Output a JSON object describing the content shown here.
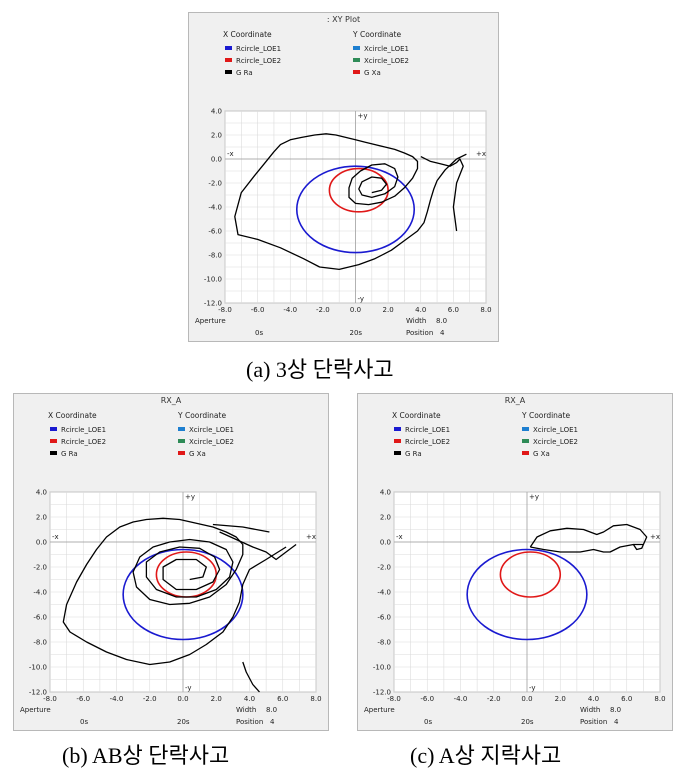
{
  "chart_data": [
    {
      "type": "line",
      "title": ": XY Plot",
      "caption": "(a) 3상 단락사고",
      "legend": {
        "x_header": "X Coordinate",
        "y_header": "Y Coordinate",
        "rows": [
          {
            "x_name": "Rcircle_LOE1",
            "x_color": "#1a1ad0",
            "y_name": "Xcircle_LOE1",
            "y_color": "#1e7fd0"
          },
          {
            "x_name": "Rcircle_LOE2",
            "x_color": "#e01818",
            "y_name": "Xcircle_LOE2",
            "y_color": "#2e8b57"
          },
          {
            "x_name": "G Ra",
            "x_color": "#000000",
            "y_name": "G Xa",
            "y_color": "#e01818"
          }
        ]
      },
      "xlim": [
        -8,
        8
      ],
      "ylim": [
        -12,
        4
      ],
      "x_ticks": [
        "-8.0",
        "-6.0",
        "-4.0",
        "-2.0",
        "0.0",
        "2.0",
        "4.0",
        "6.0",
        "8.0"
      ],
      "y_ticks": [
        "4.0",
        "2.0",
        "0.0",
        "-2.0",
        "-4.0",
        "-6.0",
        "-8.0",
        "-10.0",
        "-12.0"
      ],
      "axis_marks": {
        "px": "+x",
        "nx": "-x",
        "py": "+y",
        "ny": "-y"
      },
      "footer": {
        "aperture": "Aperture",
        "t_start": "0s",
        "t_end": "20s",
        "width_label": "Width",
        "width": "8.0",
        "position_label": "Position",
        "position": "4"
      },
      "circles": [
        {
          "name": "Rcircle_LOE1",
          "color": "#1a1ad0",
          "cx": 0.0,
          "cy": -4.2,
          "r": 3.6
        },
        {
          "name": "Rcircle_LOE2",
          "color": "#e01818",
          "cx": 0.2,
          "cy": -2.6,
          "r": 1.8
        }
      ],
      "traces": [
        {
          "name": "G Ra / G Xa",
          "color": "#000000",
          "points": [
            [
              6.2,
              0.0
            ],
            [
              5.5,
              -0.9
            ],
            [
              5.0,
              -1.8
            ],
            [
              4.8,
              -2.5
            ],
            [
              4.6,
              -3.4
            ],
            [
              4.4,
              -4.4
            ],
            [
              4.2,
              -5.3
            ],
            [
              3.8,
              -6.0
            ],
            [
              3.0,
              -6.8
            ],
            [
              2.2,
              -7.6
            ],
            [
              1.2,
              -8.3
            ],
            [
              0.2,
              -8.8
            ],
            [
              -1.0,
              -9.2
            ],
            [
              -2.2,
              -9.0
            ],
            [
              -3.2,
              -8.3
            ],
            [
              -4.6,
              -7.4
            ],
            [
              -6.0,
              -6.7
            ],
            [
              -7.2,
              -6.3
            ],
            [
              -7.4,
              -4.8
            ],
            [
              -7.0,
              -2.8
            ],
            [
              -6.2,
              -1.4
            ],
            [
              -5.6,
              -0.4
            ],
            [
              -5.0,
              0.6
            ],
            [
              -4.6,
              1.2
            ],
            [
              -4.0,
              1.6
            ],
            [
              -3.3,
              1.8
            ],
            [
              -2.5,
              2.0
            ],
            [
              -1.8,
              2.1
            ],
            [
              -1.2,
              2.0
            ],
            [
              -0.6,
              1.8
            ],
            [
              0.0,
              1.6
            ],
            [
              0.6,
              1.4
            ],
            [
              1.2,
              1.2
            ],
            [
              1.8,
              1.0
            ],
            [
              2.4,
              0.8
            ],
            [
              3.0,
              0.5
            ],
            [
              3.5,
              0.2
            ],
            [
              3.8,
              -0.2
            ],
            [
              3.8,
              -0.8
            ],
            [
              3.5,
              -1.6
            ],
            [
              3.0,
              -2.4
            ],
            [
              2.4,
              -3.1
            ],
            [
              1.6,
              -3.6
            ],
            [
              0.8,
              -3.8
            ],
            [
              0.0,
              -3.7
            ],
            [
              -0.4,
              -3.2
            ],
            [
              -0.4,
              -2.4
            ],
            [
              -0.2,
              -1.6
            ],
            [
              0.3,
              -1.0
            ],
            [
              1.0,
              -0.5
            ],
            [
              1.8,
              -0.4
            ],
            [
              2.4,
              -0.8
            ],
            [
              2.6,
              -1.5
            ],
            [
              2.4,
              -2.3
            ],
            [
              1.8,
              -2.9
            ],
            [
              1.0,
              -3.2
            ],
            [
              0.4,
              -3.0
            ],
            [
              0.2,
              -2.5
            ],
            [
              0.4,
              -1.9
            ],
            [
              1.0,
              -1.5
            ],
            [
              1.6,
              -1.6
            ],
            [
              1.9,
              -2.1
            ],
            [
              1.6,
              -2.6
            ],
            [
              1.0,
              -2.8
            ]
          ]
        },
        {
          "name": "branch",
          "color": "#000000",
          "points": [
            [
              4.0,
              0.2
            ],
            [
              4.6,
              -0.2
            ],
            [
              5.2,
              -0.4
            ],
            [
              5.8,
              -0.6
            ],
            [
              6.2,
              -0.3
            ],
            [
              6.4,
              0.0
            ],
            [
              6.6,
              -0.6
            ],
            [
              6.2,
              -2.0
            ],
            [
              6.0,
              -4.0
            ],
            [
              6.2,
              -6.0
            ]
          ]
        },
        {
          "name": "tick",
          "color": "#000000",
          "points": [
            [
              6.2,
              0.0
            ],
            [
              6.8,
              0.4
            ]
          ]
        }
      ]
    },
    {
      "type": "line",
      "title": "RX_A",
      "caption": "(b) AB상 단락사고",
      "legend": {
        "x_header": "X Coordinate",
        "y_header": "Y Coordinate",
        "rows": [
          {
            "x_name": "Rcircle_LOE1",
            "x_color": "#1a1ad0",
            "y_name": "Xcircle_LOE1",
            "y_color": "#1e7fd0"
          },
          {
            "x_name": "Rcircle_LOE2",
            "x_color": "#e01818",
            "y_name": "Xcircle_LOE2",
            "y_color": "#2e8b57"
          },
          {
            "x_name": "G Ra",
            "x_color": "#000000",
            "y_name": "G Xa",
            "y_color": "#e01818"
          }
        ]
      },
      "xlim": [
        -8,
        8
      ],
      "ylim": [
        -12,
        4
      ],
      "x_ticks": [
        "-8.0",
        "-6.0",
        "-4.0",
        "-2.0",
        "0.0",
        "2.0",
        "4.0",
        "6.0",
        "8.0"
      ],
      "y_ticks": [
        "4.0",
        "2.0",
        "0.0",
        "-2.0",
        "-4.0",
        "-6.0",
        "-8.0",
        "-10.0",
        "-12.0"
      ],
      "axis_marks": {
        "px": "+x",
        "nx": "-x",
        "py": "+y",
        "ny": "-y"
      },
      "footer": {
        "aperture": "Aperture",
        "t_start": "0s",
        "t_end": "20s",
        "width_label": "Width",
        "width": "8.0",
        "position_label": "Position",
        "position": "4"
      },
      "circles": [
        {
          "name": "Rcircle_LOE1",
          "color": "#1a1ad0",
          "cx": 0.0,
          "cy": -4.2,
          "r": 3.6
        },
        {
          "name": "Rcircle_LOE2",
          "color": "#e01818",
          "cx": 0.2,
          "cy": -2.6,
          "r": 1.8
        }
      ],
      "traces": [
        {
          "name": "G Ra / G Xa",
          "color": "#000000",
          "points": [
            [
              6.2,
              -0.4
            ],
            [
              5.0,
              -1.4
            ],
            [
              4.0,
              -2.2
            ],
            [
              3.6,
              -3.4
            ],
            [
              3.4,
              -4.8
            ],
            [
              3.0,
              -6.0
            ],
            [
              2.4,
              -7.2
            ],
            [
              1.4,
              -8.2
            ],
            [
              0.4,
              -9.0
            ],
            [
              -0.8,
              -9.6
            ],
            [
              -2.0,
              -9.8
            ],
            [
              -3.4,
              -9.4
            ],
            [
              -4.6,
              -8.8
            ],
            [
              -5.8,
              -8.0
            ],
            [
              -6.8,
              -7.2
            ],
            [
              -7.2,
              -6.4
            ],
            [
              -7.0,
              -5.0
            ],
            [
              -6.4,
              -3.2
            ],
            [
              -5.8,
              -1.8
            ],
            [
              -5.2,
              -0.6
            ],
            [
              -4.6,
              0.4
            ],
            [
              -3.8,
              1.2
            ],
            [
              -3.0,
              1.6
            ],
            [
              -2.2,
              1.8
            ],
            [
              -1.2,
              1.9
            ],
            [
              -0.2,
              1.8
            ],
            [
              0.8,
              1.5
            ],
            [
              1.8,
              1.2
            ],
            [
              2.6,
              0.8
            ],
            [
              3.2,
              0.4
            ],
            [
              3.6,
              -0.2
            ],
            [
              3.6,
              -1.0
            ],
            [
              3.2,
              -2.2
            ],
            [
              2.6,
              -3.4
            ],
            [
              1.6,
              -4.4
            ],
            [
              0.4,
              -4.9
            ],
            [
              -0.8,
              -5.0
            ],
            [
              -2.0,
              -4.6
            ],
            [
              -2.8,
              -3.6
            ],
            [
              -3.0,
              -2.4
            ],
            [
              -2.6,
              -1.2
            ],
            [
              -1.8,
              -0.4
            ],
            [
              -0.8,
              0.0
            ],
            [
              0.4,
              0.2
            ],
            [
              1.6,
              0.0
            ],
            [
              2.6,
              -0.6
            ],
            [
              3.0,
              -1.6
            ],
            [
              2.8,
              -2.8
            ],
            [
              2.0,
              -3.8
            ],
            [
              0.8,
              -4.4
            ],
            [
              -0.4,
              -4.4
            ],
            [
              -1.6,
              -3.8
            ],
            [
              -2.2,
              -2.8
            ],
            [
              -2.2,
              -1.6
            ],
            [
              -1.4,
              -0.8
            ],
            [
              -0.2,
              -0.4
            ],
            [
              1.0,
              -0.5
            ],
            [
              1.9,
              -1.2
            ],
            [
              2.2,
              -2.2
            ],
            [
              1.8,
              -3.2
            ],
            [
              0.8,
              -3.8
            ],
            [
              -0.4,
              -3.8
            ],
            [
              -1.2,
              -3.0
            ],
            [
              -1.2,
              -2.0
            ],
            [
              -0.4,
              -1.4
            ],
            [
              0.8,
              -1.4
            ],
            [
              1.4,
              -2.0
            ],
            [
              1.2,
              -2.8
            ],
            [
              0.4,
              -3.0
            ]
          ]
        },
        {
          "name": "tail",
          "color": "#000000",
          "points": [
            [
              2.2,
              0.8
            ],
            [
              3.2,
              0.2
            ],
            [
              4.2,
              -0.4
            ],
            [
              5.0,
              -0.8
            ],
            [
              5.6,
              -1.4
            ],
            [
              6.4,
              -0.6
            ],
            [
              6.8,
              -0.2
            ]
          ]
        },
        {
          "name": "outer",
          "color": "#000000",
          "points": [
            [
              1.8,
              1.4
            ],
            [
              3.6,
              1.2
            ],
            [
              5.2,
              0.8
            ]
          ]
        },
        {
          "name": "tail2",
          "color": "#000000",
          "points": [
            [
              3.6,
              -9.6
            ],
            [
              3.8,
              -10.4
            ],
            [
              4.2,
              -11.4
            ],
            [
              4.6,
              -12.0
            ]
          ]
        }
      ]
    },
    {
      "type": "line",
      "title": "RX_A",
      "caption": "(c) A상 지락사고",
      "legend": {
        "x_header": "X Coordinate",
        "y_header": "Y Coordinate",
        "rows": [
          {
            "x_name": "Rcircle_LOE1",
            "x_color": "#1a1ad0",
            "y_name": "Xcircle_LOE1",
            "y_color": "#1e7fd0"
          },
          {
            "x_name": "Rcircle_LOE2",
            "x_color": "#e01818",
            "y_name": "Xcircle_LOE2",
            "y_color": "#2e8b57"
          },
          {
            "x_name": "G Ra",
            "x_color": "#000000",
            "y_name": "G Xa",
            "y_color": "#e01818"
          }
        ]
      },
      "xlim": [
        -8,
        8
      ],
      "ylim": [
        -12,
        4
      ],
      "x_ticks": [
        "-8.0",
        "-6.0",
        "-4.0",
        "-2.0",
        "0.0",
        "2.0",
        "4.0",
        "6.0",
        "8.0"
      ],
      "y_ticks": [
        "4.0",
        "2.0",
        "0.0",
        "-2.0",
        "-4.0",
        "-6.0",
        "-8.0",
        "-10.0",
        "-12.0"
      ],
      "axis_marks": {
        "px": "+x",
        "nx": "-x",
        "py": "+y",
        "ny": "-y"
      },
      "footer": {
        "aperture": "Aperture",
        "t_start": "0s",
        "t_end": "20s",
        "width_label": "Width",
        "width": "8.0",
        "position_label": "Position",
        "position": "4"
      },
      "circles": [
        {
          "name": "Rcircle_LOE1",
          "color": "#1a1ad0",
          "cx": 0.0,
          "cy": -4.2,
          "r": 3.6
        },
        {
          "name": "Rcircle_LOE2",
          "color": "#e01818",
          "cx": 0.2,
          "cy": -2.6,
          "r": 1.8
        }
      ],
      "traces": [
        {
          "name": "G Ra / G Xa",
          "color": "#000000",
          "points": [
            [
              0.2,
              -0.4
            ],
            [
              0.6,
              0.4
            ],
            [
              1.4,
              0.9
            ],
            [
              2.4,
              1.1
            ],
            [
              3.4,
              1.0
            ],
            [
              4.2,
              0.6
            ],
            [
              4.6,
              0.8
            ],
            [
              5.2,
              1.3
            ],
            [
              6.0,
              1.4
            ],
            [
              6.8,
              1.0
            ],
            [
              7.2,
              0.4
            ],
            [
              7.0,
              -0.2
            ],
            [
              6.4,
              -0.2
            ],
            [
              5.6,
              -0.4
            ],
            [
              5.0,
              -0.8
            ],
            [
              4.6,
              -0.8
            ],
            [
              4.0,
              -0.6
            ],
            [
              3.2,
              -0.8
            ],
            [
              2.0,
              -0.8
            ],
            [
              1.0,
              -0.6
            ],
            [
              0.2,
              -0.4
            ]
          ]
        },
        {
          "name": "hook",
          "color": "#000000",
          "points": [
            [
              6.4,
              -0.2
            ],
            [
              6.6,
              -0.6
            ],
            [
              6.9,
              -0.5
            ],
            [
              7.0,
              -0.2
            ]
          ]
        }
      ]
    }
  ]
}
